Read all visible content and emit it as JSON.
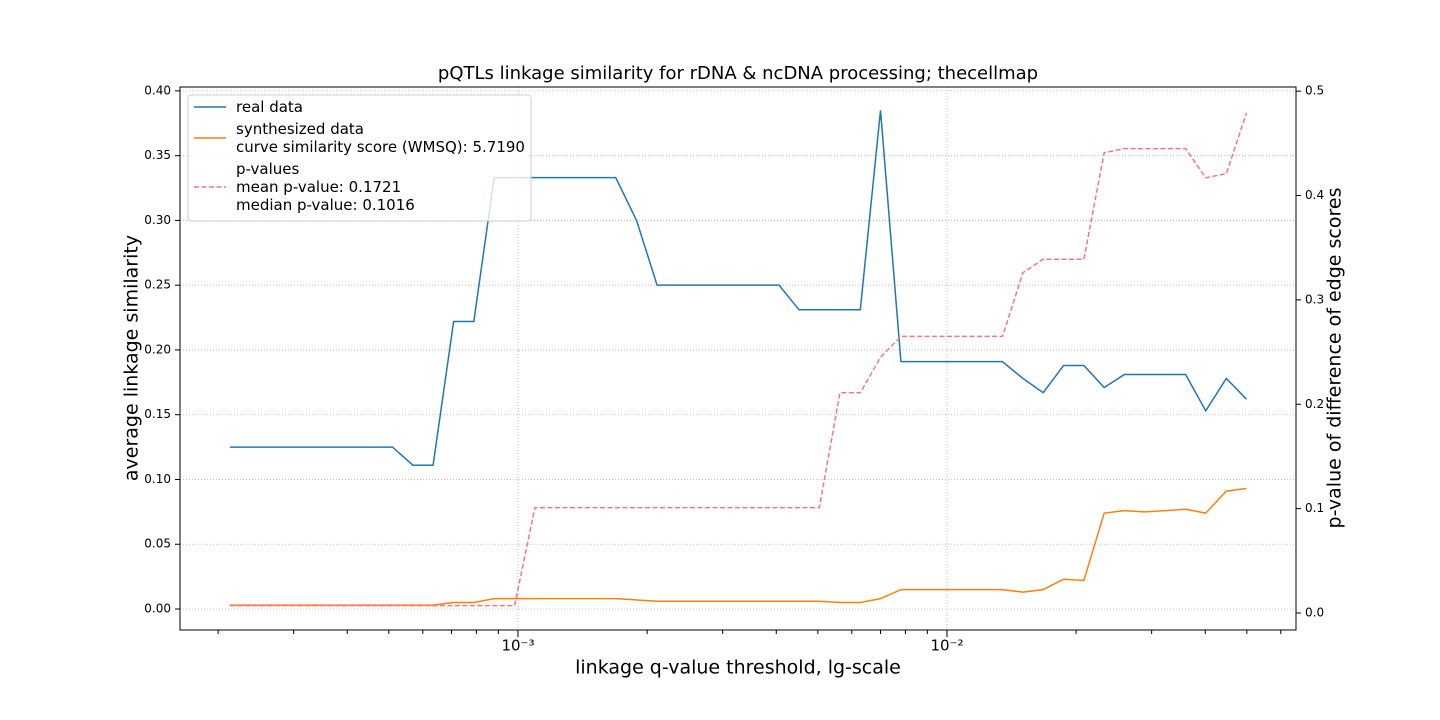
{
  "chart_data": {
    "type": "line",
    "title": "pQTLs linkage similarity for rDNA & ncDNA processing; thecellmap",
    "xlabel": "linkage q-value threshold, lg-scale",
    "ylabel": "average linkage similarity",
    "y2label": "p-value of difference of edge scores",
    "xscale": "log",
    "grid": true,
    "legend": "upper left",
    "xlim": [
      0.000163,
      0.0651
    ],
    "ylim": [
      -0.0162,
      0.403
    ],
    "y2lim": [
      -0.0163,
      0.504
    ],
    "xticks": [
      {
        "value": 0.001,
        "label": "10⁻³"
      },
      {
        "value": 0.01,
        "label": "10⁻²"
      }
    ],
    "xminorticks": [
      0.0002,
      0.0003,
      0.0004,
      0.0005,
      0.0006,
      0.0007,
      0.0008,
      0.0009,
      0.002,
      0.003,
      0.004,
      0.005,
      0.006,
      0.007,
      0.008,
      0.009,
      0.02,
      0.03,
      0.04,
      0.05,
      0.06
    ],
    "yticks": [
      {
        "value": 0,
        "label": "0.00"
      },
      0.05,
      {
        "value": 0.1,
        "label": "0.10"
      },
      0.15,
      {
        "value": 0.2,
        "label": "0.20"
      },
      0.25,
      {
        "value": 0.3,
        "label": "0.30"
      },
      0.35,
      {
        "value": 0.4,
        "label": "0.40"
      }
    ],
    "y2ticks": [
      {
        "value": 0,
        "label": "0.0"
      },
      0.1,
      0.2,
      0.3,
      0.4,
      0.5
    ],
    "x": [
      0.000213,
      0.000238,
      0.000265,
      0.000296,
      0.00033,
      0.000368,
      0.00041,
      0.000457,
      0.00051,
      0.000569,
      0.000634,
      0.000708,
      0.000789,
      0.00088,
      0.000982,
      0.001095,
      0.00122,
      0.00136,
      0.00152,
      0.00169,
      0.00189,
      0.00211,
      0.00235,
      0.00262,
      0.00292,
      0.00326,
      0.00364,
      0.00406,
      0.00452,
      0.00504,
      0.00563,
      0.00628,
      0.007,
      0.00781,
      0.00871,
      0.00971,
      0.01083,
      0.01208,
      0.01347,
      0.01503,
      0.01676,
      0.0187,
      0.02085,
      0.02325,
      0.0259,
      0.0289,
      0.0323,
      0.036,
      0.0401,
      0.0448,
      0.0499
    ],
    "series": [
      {
        "name": "real data",
        "color": "#1f77b4",
        "values": [
          0.125,
          0.125,
          0.125,
          0.125,
          0.125,
          0.125,
          0.125,
          0.125,
          0.125,
          0.111,
          0.111,
          0.222,
          0.222,
          0.333,
          0.333,
          0.333,
          0.333,
          0.333,
          0.333,
          0.333,
          0.3,
          0.25,
          0.25,
          0.25,
          0.25,
          0.25,
          0.25,
          0.25,
          0.231,
          0.231,
          0.231,
          0.231,
          0.385,
          0.191,
          0.191,
          0.191,
          0.191,
          0.191,
          0.191,
          0.178,
          0.167,
          0.188,
          0.188,
          0.171,
          0.181,
          0.181,
          0.181,
          0.181,
          0.153,
          0.178,
          0.162
        ]
      },
      {
        "name": "synthesized data\ncurve similarity score (WMSQ): 5.7190",
        "color": "#ff7f0e",
        "values": [
          0.003,
          0.003,
          0.003,
          0.003,
          0.003,
          0.003,
          0.003,
          0.003,
          0.003,
          0.003,
          0.003,
          0.005,
          0.005,
          0.008,
          0.008,
          0.008,
          0.008,
          0.008,
          0.008,
          0.008,
          0.007,
          0.006,
          0.006,
          0.006,
          0.006,
          0.006,
          0.006,
          0.006,
          0.006,
          0.006,
          0.005,
          0.005,
          0.008,
          0.015,
          0.015,
          0.015,
          0.015,
          0.015,
          0.015,
          0.013,
          0.015,
          0.023,
          0.022,
          0.074,
          0.076,
          0.075,
          0.076,
          0.077,
          0.074,
          0.091,
          0.093
        ]
      },
      {
        "name": "p-values\nmean p-value: 0.1721\nmedian p-value: 0.1016",
        "color": "#f4797b",
        "linestyle": "dashed",
        "axis": "y2",
        "values": [
          0.007,
          0.007,
          0.007,
          0.007,
          0.007,
          0.007,
          0.007,
          0.007,
          0.007,
          0.007,
          0.007,
          0.007,
          0.007,
          0.007,
          0.007,
          0.101,
          0.101,
          0.101,
          0.101,
          0.101,
          0.101,
          0.101,
          0.101,
          0.101,
          0.101,
          0.101,
          0.101,
          0.101,
          0.101,
          0.101,
          0.211,
          0.211,
          0.245,
          0.265,
          0.265,
          0.265,
          0.265,
          0.265,
          0.265,
          0.326,
          0.339,
          0.339,
          0.339,
          0.441,
          0.445,
          0.445,
          0.445,
          0.445,
          0.417,
          0.421,
          0.479
        ]
      }
    ]
  }
}
